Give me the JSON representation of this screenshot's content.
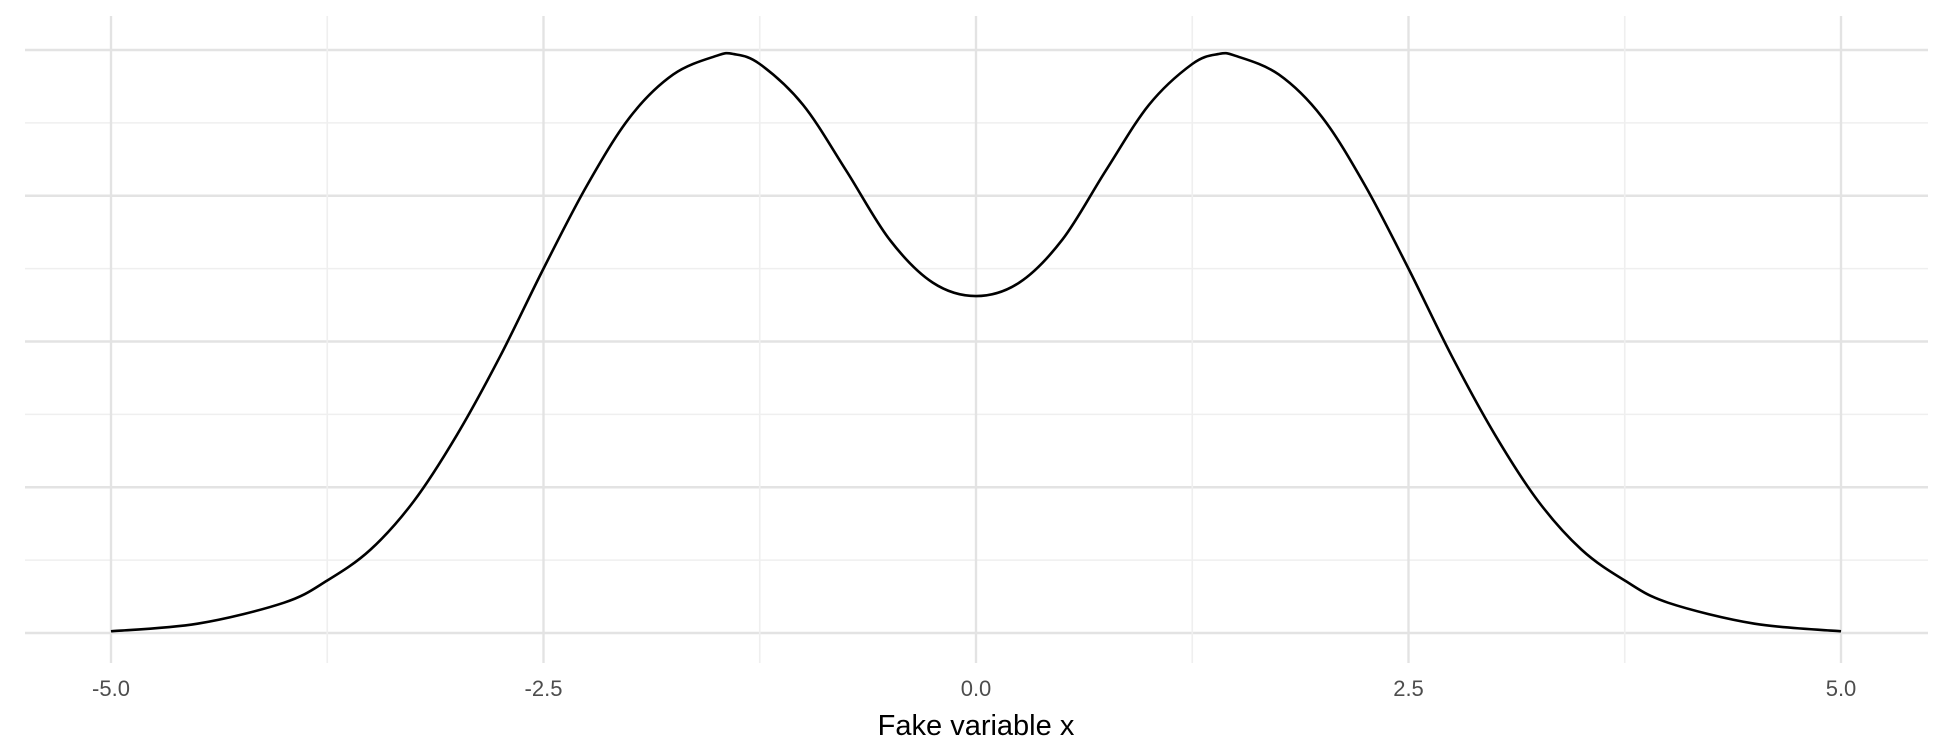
{
  "chart_data": {
    "type": "line",
    "title": "",
    "xlabel": "Fake variable x",
    "ylabel": "",
    "xlim": [
      -5.2,
      5.2
    ],
    "ylim": [
      0,
      1
    ],
    "x_major_ticks": [
      -5.0,
      -2.5,
      0.0,
      2.5,
      5.0
    ],
    "x_tick_labels": [
      "-5.0",
      "-2.5",
      "0.0",
      "2.5",
      "5.0"
    ],
    "x_minor_ticks": [
      -3.75,
      -1.25,
      1.25,
      3.75
    ],
    "y_axis_labels_shown": false,
    "grid": true,
    "series": [
      {
        "color": "#000000",
        "x": [
          -5.0,
          -4.5,
          -4.0,
          -3.75,
          -3.5,
          -3.25,
          -3.0,
          -2.75,
          -2.5,
          -2.25,
          -2.0,
          -1.75,
          -1.5,
          -1.4,
          -1.25,
          -1.0,
          -0.75,
          -0.5,
          -0.25,
          0.0,
          0.25,
          0.5,
          0.75,
          1.0,
          1.25,
          1.4,
          1.5,
          1.75,
          2.0,
          2.25,
          2.5,
          2.75,
          3.0,
          3.25,
          3.5,
          3.75,
          4.0,
          4.5,
          5.0
        ],
        "y": [
          0.003,
          0.016,
          0.052,
          0.09,
          0.143,
          0.226,
          0.34,
          0.475,
          0.625,
          0.767,
          0.885,
          0.958,
          0.99,
          0.993,
          0.976,
          0.906,
          0.793,
          0.675,
          0.601,
          0.578,
          0.601,
          0.675,
          0.793,
          0.906,
          0.976,
          0.993,
          0.99,
          0.958,
          0.885,
          0.767,
          0.625,
          0.475,
          0.34,
          0.226,
          0.143,
          0.09,
          0.052,
          0.016,
          0.003
        ]
      }
    ]
  }
}
